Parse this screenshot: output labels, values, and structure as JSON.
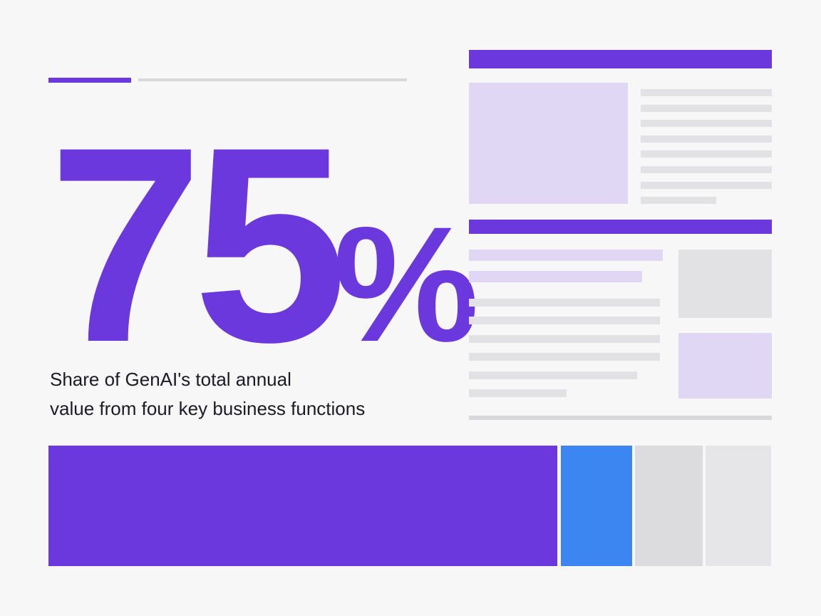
{
  "stat": {
    "value": "75%",
    "caption": [
      "Share of GenAI's total annual",
      "value from four key business functions"
    ]
  }
}
